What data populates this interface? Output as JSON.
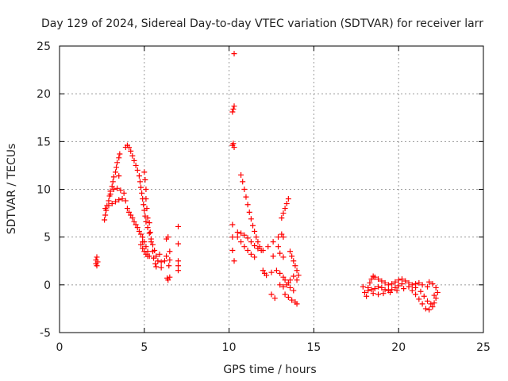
{
  "chart_data": {
    "type": "scatter",
    "title": "Day 129 of 2024, Sidereal Day-to-day VTEC variation (SDTVAR) for receiver larr",
    "xlabel": "GPS time / hours",
    "ylabel": "SDTVAR / TECUs",
    "xlim": [
      0,
      25
    ],
    "ylim": [
      -5,
      25
    ],
    "xticks": [
      0,
      5,
      10,
      15,
      20,
      25
    ],
    "yticks": [
      -5,
      0,
      5,
      10,
      15,
      20,
      25
    ],
    "grid": true,
    "marker": "+",
    "color": "#ff0000",
    "series": [
      {
        "name": "SDTVAR",
        "points": [
          [
            2.15,
            2.2
          ],
          [
            2.15,
            2.6
          ],
          [
            2.2,
            2.9
          ],
          [
            2.25,
            2.4
          ],
          [
            2.2,
            2.0
          ],
          [
            2.65,
            6.8
          ],
          [
            2.7,
            7.3
          ],
          [
            2.75,
            7.8
          ],
          [
            2.8,
            8.3
          ],
          [
            2.9,
            8.8
          ],
          [
            2.95,
            9.3
          ],
          [
            3.0,
            9.8
          ],
          [
            3.1,
            10.3
          ],
          [
            3.15,
            10.8
          ],
          [
            3.2,
            11.3
          ],
          [
            3.3,
            11.8
          ],
          [
            3.35,
            12.3
          ],
          [
            3.4,
            12.8
          ],
          [
            3.5,
            13.3
          ],
          [
            3.55,
            13.7
          ],
          [
            2.7,
            8.0
          ],
          [
            2.9,
            8.3
          ],
          [
            3.1,
            8.5
          ],
          [
            3.3,
            8.7
          ],
          [
            3.5,
            8.9
          ],
          [
            3.7,
            9.0
          ],
          [
            3.9,
            8.8
          ],
          [
            3.0,
            9.5
          ],
          [
            3.2,
            10.0
          ],
          [
            3.4,
            10.1
          ],
          [
            3.6,
            9.9
          ],
          [
            3.8,
            9.6
          ],
          [
            3.5,
            11.4
          ],
          [
            3.9,
            14.4
          ],
          [
            4.0,
            14.6
          ],
          [
            4.1,
            14.4
          ],
          [
            4.2,
            14.0
          ],
          [
            4.3,
            13.5
          ],
          [
            4.4,
            13.0
          ],
          [
            4.5,
            12.5
          ],
          [
            4.6,
            12.0
          ],
          [
            4.7,
            11.4
          ],
          [
            4.75,
            10.8
          ],
          [
            4.8,
            10.2
          ],
          [
            4.85,
            9.6
          ],
          [
            4.9,
            9.0
          ],
          [
            4.95,
            8.4
          ],
          [
            5.0,
            7.8
          ],
          [
            5.05,
            7.2
          ],
          [
            5.1,
            6.6
          ],
          [
            5.2,
            6.0
          ],
          [
            5.3,
            5.4
          ],
          [
            5.4,
            4.8
          ],
          [
            5.5,
            4.2
          ],
          [
            5.6,
            3.6
          ],
          [
            5.7,
            3.0
          ],
          [
            5.8,
            2.5
          ],
          [
            4.0,
            8.0
          ],
          [
            4.1,
            7.6
          ],
          [
            4.2,
            7.3
          ],
          [
            4.3,
            7.0
          ],
          [
            4.4,
            6.6
          ],
          [
            4.5,
            6.3
          ],
          [
            4.6,
            6.0
          ],
          [
            4.7,
            5.6
          ],
          [
            4.8,
            5.3
          ],
          [
            4.9,
            5.0
          ],
          [
            5.0,
            4.5
          ],
          [
            5.1,
            4.0
          ],
          [
            5.2,
            3.5
          ],
          [
            5.3,
            3.0
          ],
          [
            4.9,
            4.5
          ],
          [
            4.8,
            4.2
          ],
          [
            4.9,
            3.8
          ],
          [
            5.0,
            3.5
          ],
          [
            5.1,
            3.2
          ],
          [
            5.2,
            3.0
          ],
          [
            5.0,
            11.8
          ],
          [
            5.05,
            11.0
          ],
          [
            5.1,
            10.0
          ],
          [
            5.1,
            9.0
          ],
          [
            5.15,
            8.0
          ],
          [
            5.2,
            7.0
          ],
          [
            5.3,
            6.5
          ],
          [
            5.35,
            5.5
          ],
          [
            5.4,
            4.5
          ],
          [
            5.5,
            3.5
          ],
          [
            5.55,
            2.8
          ],
          [
            5.65,
            2.2
          ],
          [
            5.7,
            1.9
          ],
          [
            5.9,
            3.2
          ],
          [
            6.0,
            2.4
          ],
          [
            6.0,
            1.8
          ],
          [
            6.2,
            2.5
          ],
          [
            6.3,
            3.0
          ],
          [
            6.3,
            4.8
          ],
          [
            6.4,
            5.0
          ],
          [
            6.35,
            0.7
          ],
          [
            6.4,
            0.5
          ],
          [
            6.5,
            0.8
          ],
          [
            6.45,
            2.0
          ],
          [
            6.5,
            2.6
          ],
          [
            6.5,
            3.5
          ],
          [
            7.0,
            6.1
          ],
          [
            7.0,
            4.3
          ],
          [
            7.0,
            2.5
          ],
          [
            7.0,
            2.0
          ],
          [
            7.0,
            1.5
          ],
          [
            10.3,
            24.2
          ],
          [
            10.2,
            18.1
          ],
          [
            10.25,
            18.4
          ],
          [
            10.3,
            18.7
          ],
          [
            10.2,
            14.6
          ],
          [
            10.25,
            14.8
          ],
          [
            10.3,
            14.4
          ],
          [
            10.2,
            6.3
          ],
          [
            10.2,
            5.0
          ],
          [
            10.2,
            3.6
          ],
          [
            10.3,
            2.5
          ],
          [
            10.7,
            11.5
          ],
          [
            10.8,
            10.8
          ],
          [
            10.9,
            10.0
          ],
          [
            11.0,
            9.2
          ],
          [
            11.1,
            8.4
          ],
          [
            11.2,
            7.6
          ],
          [
            11.3,
            6.9
          ],
          [
            11.4,
            6.2
          ],
          [
            11.5,
            5.6
          ],
          [
            11.6,
            5.0
          ],
          [
            11.7,
            4.5
          ],
          [
            11.8,
            4.0
          ],
          [
            11.9,
            3.6
          ],
          [
            10.5,
            5.5
          ],
          [
            10.7,
            5.4
          ],
          [
            10.9,
            5.2
          ],
          [
            11.1,
            4.9
          ],
          [
            11.3,
            4.5
          ],
          [
            11.5,
            4.1
          ],
          [
            11.7,
            3.8
          ],
          [
            10.5,
            5.0
          ],
          [
            10.7,
            4.5
          ],
          [
            10.9,
            4.0
          ],
          [
            11.1,
            3.6
          ],
          [
            11.3,
            3.2
          ],
          [
            11.5,
            2.9
          ],
          [
            12.0,
            3.6
          ],
          [
            12.3,
            4.0
          ],
          [
            12.6,
            4.5
          ],
          [
            12.9,
            5.0
          ],
          [
            13.1,
            5.3
          ],
          [
            13.2,
            5.0
          ],
          [
            12.9,
            4.0
          ],
          [
            13.0,
            3.3
          ],
          [
            12.6,
            3.0
          ],
          [
            13.2,
            2.9
          ],
          [
            13.1,
            7.0
          ],
          [
            13.2,
            7.5
          ],
          [
            13.3,
            8.0
          ],
          [
            13.4,
            8.5
          ],
          [
            13.5,
            9.0
          ],
          [
            13.6,
            3.5
          ],
          [
            13.7,
            3.0
          ],
          [
            13.8,
            2.5
          ],
          [
            13.9,
            2.0
          ],
          [
            14.0,
            1.5
          ],
          [
            14.1,
            1.0
          ],
          [
            14.0,
            0.5
          ],
          [
            12.0,
            1.5
          ],
          [
            12.1,
            1.2
          ],
          [
            12.2,
            1.0
          ],
          [
            12.5,
            1.3
          ],
          [
            12.8,
            1.5
          ],
          [
            13.0,
            1.2
          ],
          [
            13.2,
            0.8
          ],
          [
            13.3,
            0.5
          ],
          [
            13.5,
            0.2
          ],
          [
            13.6,
            -0.3
          ],
          [
            13.8,
            -0.6
          ],
          [
            13.0,
            0.0
          ],
          [
            13.2,
            -0.2
          ],
          [
            13.4,
            0.0
          ],
          [
            13.6,
            0.5
          ],
          [
            13.8,
            0.9
          ],
          [
            12.5,
            -1.0
          ],
          [
            12.7,
            -1.4
          ],
          [
            13.3,
            -1.0
          ],
          [
            13.5,
            -1.3
          ],
          [
            13.7,
            -1.6
          ],
          [
            13.9,
            -1.8
          ],
          [
            14.0,
            -2.0
          ],
          [
            17.9,
            -0.2
          ],
          [
            18.0,
            -0.8
          ],
          [
            18.1,
            -1.2
          ],
          [
            18.2,
            -0.6
          ],
          [
            18.3,
            0.2
          ],
          [
            18.4,
            0.6
          ],
          [
            18.5,
            0.9
          ],
          [
            18.6,
            0.8
          ],
          [
            18.8,
            0.6
          ],
          [
            19.0,
            0.4
          ],
          [
            19.2,
            0.2
          ],
          [
            19.4,
            0.0
          ],
          [
            19.6,
            0.1
          ],
          [
            19.8,
            0.3
          ],
          [
            20.0,
            0.5
          ],
          [
            20.2,
            0.6
          ],
          [
            20.4,
            0.4
          ],
          [
            20.6,
            0.2
          ],
          [
            20.8,
            0.0
          ],
          [
            18.2,
            -0.3
          ],
          [
            18.4,
            -0.5
          ],
          [
            18.6,
            -0.4
          ],
          [
            18.8,
            -0.2
          ],
          [
            19.0,
            -0.3
          ],
          [
            19.2,
            -0.5
          ],
          [
            19.4,
            -0.6
          ],
          [
            19.6,
            -0.5
          ],
          [
            19.8,
            -0.3
          ],
          [
            20.0,
            -0.1
          ],
          [
            20.2,
            0.1
          ],
          [
            18.5,
            -0.9
          ],
          [
            18.8,
            -1.0
          ],
          [
            19.1,
            -0.9
          ],
          [
            19.5,
            -0.8
          ],
          [
            19.9,
            -0.6
          ],
          [
            20.3,
            -0.4
          ],
          [
            20.6,
            -0.2
          ],
          [
            20.8,
            -0.6
          ],
          [
            21.0,
            -1.0
          ],
          [
            21.2,
            -1.5
          ],
          [
            21.4,
            -2.0
          ],
          [
            21.6,
            -2.5
          ],
          [
            21.8,
            -2.6
          ],
          [
            22.0,
            -2.3
          ],
          [
            22.1,
            -1.9
          ],
          [
            22.2,
            -1.4
          ],
          [
            22.3,
            -0.8
          ],
          [
            22.2,
            -0.3
          ],
          [
            22.0,
            0.1
          ],
          [
            21.8,
            0.3
          ],
          [
            21.0,
            -0.3
          ],
          [
            21.3,
            -0.7
          ],
          [
            21.5,
            -1.2
          ],
          [
            21.7,
            -1.7
          ],
          [
            21.9,
            -2.0
          ],
          [
            22.1,
            -1.1
          ],
          [
            21.7,
            -0.2
          ],
          [
            21.4,
            0.0
          ],
          [
            21.2,
            0.2
          ],
          [
            21.0,
            0.1
          ]
        ]
      }
    ]
  }
}
